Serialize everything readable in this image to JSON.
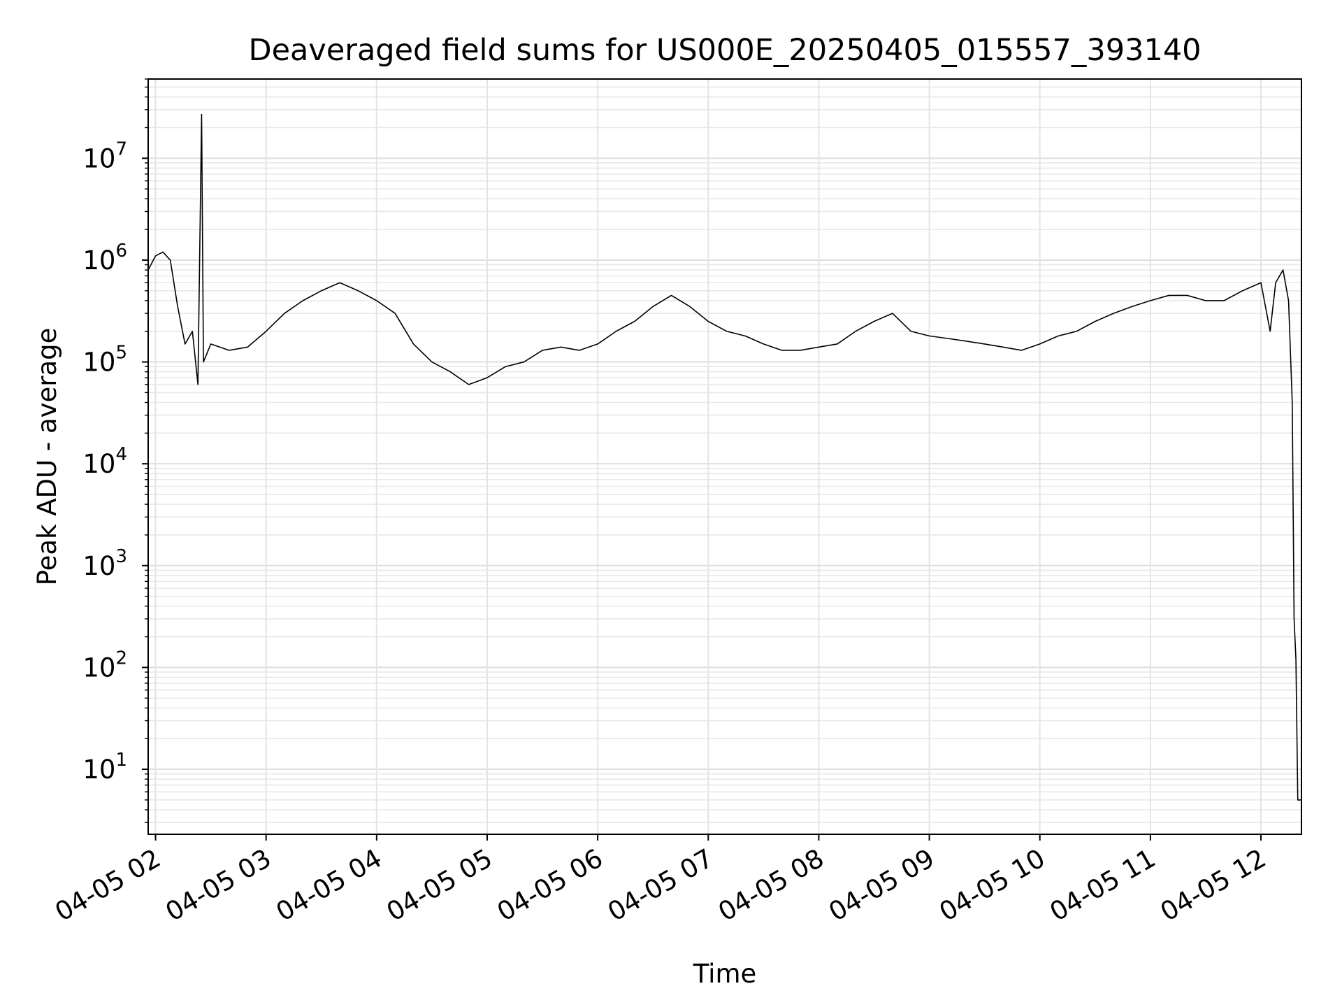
{
  "chart_data": {
    "type": "line",
    "title": "Deaveraged field sums for US000E_20250405_015557_393140",
    "xlabel": "Time",
    "ylabel": "Peak ADU - average",
    "yscale": "log",
    "ylim": [
      2.3,
      60000000
    ],
    "xlim": [
      "04-05 01:56",
      "04-05 12:22"
    ],
    "grid": true,
    "line_color": "#000000",
    "x_ticks": [
      "04-05 02",
      "04-05 03",
      "04-05 04",
      "04-05 05",
      "04-05 06",
      "04-05 07",
      "04-05 08",
      "04-05 09",
      "04-05 10",
      "04-05 11",
      "04-05 12"
    ],
    "y_ticks": [
      {
        "base": "10",
        "exp": "1",
        "value": 10
      },
      {
        "base": "10",
        "exp": "2",
        "value": 100
      },
      {
        "base": "10",
        "exp": "3",
        "value": 1000
      },
      {
        "base": "10",
        "exp": "4",
        "value": 10000
      },
      {
        "base": "10",
        "exp": "5",
        "value": 100000
      },
      {
        "base": "10",
        "exp": "6",
        "value": 1000000
      },
      {
        "base": "10",
        "exp": "7",
        "value": 10000000
      }
    ],
    "series": [
      {
        "values": [
          [
            "04-05 01:56",
            800000
          ],
          [
            "04-05 02:00",
            1100000
          ],
          [
            "04-05 02:04",
            1200000
          ],
          [
            "04-05 02:08",
            1000000
          ],
          [
            "04-05 02:12",
            350000
          ],
          [
            "04-05 02:16",
            150000
          ],
          [
            "04-05 02:20",
            200000
          ],
          [
            "04-05 02:23",
            60000
          ],
          [
            "04-05 02:25",
            27000000
          ],
          [
            "04-05 02:26",
            100000
          ],
          [
            "04-05 02:30",
            150000
          ],
          [
            "04-05 02:40",
            130000
          ],
          [
            "04-05 02:50",
            140000
          ],
          [
            "04-05 03:00",
            200000
          ],
          [
            "04-05 03:10",
            300000
          ],
          [
            "04-05 03:20",
            400000
          ],
          [
            "04-05 03:30",
            500000
          ],
          [
            "04-05 03:40",
            600000
          ],
          [
            "04-05 03:50",
            500000
          ],
          [
            "04-05 04:00",
            400000
          ],
          [
            "04-05 04:10",
            300000
          ],
          [
            "04-05 04:20",
            150000
          ],
          [
            "04-05 04:30",
            100000
          ],
          [
            "04-05 04:40",
            80000
          ],
          [
            "04-05 04:50",
            60000
          ],
          [
            "04-05 05:00",
            70000
          ],
          [
            "04-05 05:10",
            90000
          ],
          [
            "04-05 05:20",
            100000
          ],
          [
            "04-05 05:30",
            130000
          ],
          [
            "04-05 05:40",
            140000
          ],
          [
            "04-05 05:50",
            130000
          ],
          [
            "04-05 06:00",
            150000
          ],
          [
            "04-05 06:10",
            200000
          ],
          [
            "04-05 06:20",
            250000
          ],
          [
            "04-05 06:30",
            350000
          ],
          [
            "04-05 06:40",
            450000
          ],
          [
            "04-05 06:50",
            350000
          ],
          [
            "04-05 07:00",
            250000
          ],
          [
            "04-05 07:10",
            200000
          ],
          [
            "04-05 07:20",
            180000
          ],
          [
            "04-05 07:30",
            150000
          ],
          [
            "04-05 07:40",
            130000
          ],
          [
            "04-05 07:50",
            130000
          ],
          [
            "04-05 08:00",
            140000
          ],
          [
            "04-05 08:10",
            150000
          ],
          [
            "04-05 08:20",
            200000
          ],
          [
            "04-05 08:30",
            250000
          ],
          [
            "04-05 08:40",
            300000
          ],
          [
            "04-05 08:50",
            200000
          ],
          [
            "04-05 09:00",
            180000
          ],
          [
            "04-05 09:10",
            170000
          ],
          [
            "04-05 09:20",
            160000
          ],
          [
            "04-05 09:30",
            150000
          ],
          [
            "04-05 09:40",
            140000
          ],
          [
            "04-05 09:50",
            130000
          ],
          [
            "04-05 10:00",
            150000
          ],
          [
            "04-05 10:10",
            180000
          ],
          [
            "04-05 10:20",
            200000
          ],
          [
            "04-05 10:30",
            250000
          ],
          [
            "04-05 10:40",
            300000
          ],
          [
            "04-05 10:50",
            350000
          ],
          [
            "04-05 11:00",
            400000
          ],
          [
            "04-05 11:10",
            450000
          ],
          [
            "04-05 11:20",
            450000
          ],
          [
            "04-05 11:30",
            400000
          ],
          [
            "04-05 11:40",
            400000
          ],
          [
            "04-05 11:50",
            500000
          ],
          [
            "04-05 12:00",
            600000
          ],
          [
            "04-05 12:05",
            200000
          ],
          [
            "04-05 12:08",
            600000
          ],
          [
            "04-05 12:12",
            800000
          ],
          [
            "04-05 12:15",
            400000
          ],
          [
            "04-05 12:17",
            40000
          ],
          [
            "04-05 12:18",
            300
          ],
          [
            "04-05 12:19",
            120
          ],
          [
            "04-05 12:20",
            5
          ],
          [
            "04-05 12:22",
            5
          ]
        ]
      }
    ]
  }
}
